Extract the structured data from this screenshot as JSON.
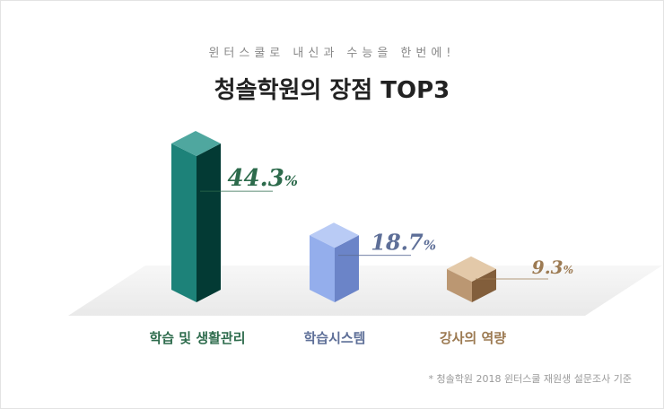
{
  "header": {
    "subtitle": "윈터스쿨로 내신과 수능을 한번에!",
    "title": "청솔학원의 장점 TOP3"
  },
  "footnote": "* 청솔학원 2018 윈터스쿨 재원생 설문조사 기준",
  "chart_data": {
    "type": "bar",
    "title": "청솔학원의 장점 TOP3",
    "categories": [
      "학습 및 생활관리",
      "학습시스템",
      "강사의 역량"
    ],
    "values": [
      44.3,
      18.7,
      9.3
    ],
    "value_labels": [
      "44.3",
      "18.7",
      "9.3"
    ],
    "unit": "%",
    "ylim": [
      0,
      50
    ],
    "grid": false,
    "legend": "none"
  },
  "colors": {
    "bar1_front": "#1d8279",
    "bar1_side": "#033a34",
    "bar1_top": "#4fa79f",
    "bar1_label": "#2d6b4c",
    "bar2_front": "#94aeec",
    "bar2_side": "#6b84c8",
    "bar2_top": "#b9cbf5",
    "bar2_label": "#5e6f98",
    "bar3_front": "#bb9772",
    "bar3_side": "#825e3b",
    "bar3_top": "#e3c9a9",
    "bar3_label": "#9c7a52"
  }
}
